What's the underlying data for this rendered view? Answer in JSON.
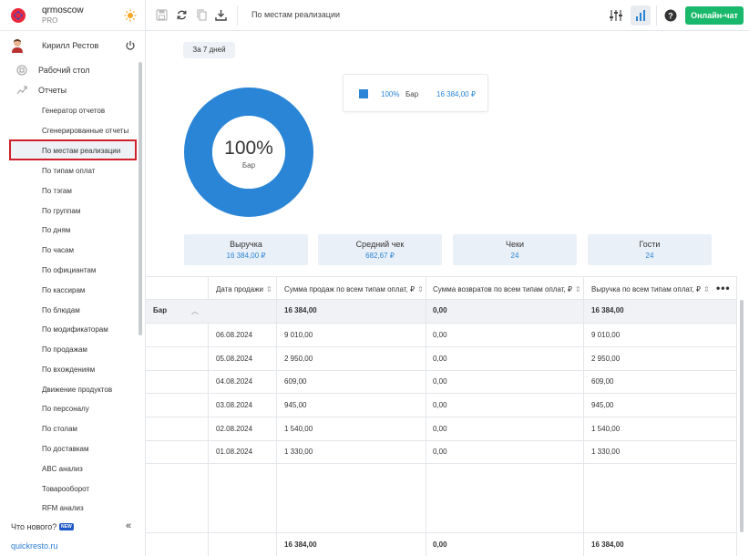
{
  "brand": {
    "name": "qrmoscow",
    "plan": "PRO"
  },
  "user": {
    "name": "Кирилл Рестов"
  },
  "nav": {
    "desktop": "Рабочий стол",
    "reports": "Отчеты",
    "items": [
      "Генератор отчетов",
      "Сгенерированные отчеты",
      "По местам реализации",
      "По типам оплат",
      "По тэгам",
      "По группам",
      "По дням",
      "По часам",
      "По официантам",
      "По кассирам",
      "По блюдам",
      "По модификаторам",
      "По продажам",
      "По вхождениям",
      "Движение продуктов",
      "По персоналу",
      "По столам",
      "По доставкам",
      "ABC анализ",
      "Товарооборот",
      "RFM анализ"
    ],
    "active_index": 2,
    "whats_new": "Что нового?",
    "new_badge": "NEW",
    "site_link": "quickresto.ru"
  },
  "toolbar": {
    "title": "По местам реализации",
    "chat_label": "Онлайн-чат"
  },
  "period": {
    "label": "За 7 дней"
  },
  "chart_data": {
    "type": "pie",
    "donut": true,
    "center_value": "100%",
    "center_label": "Бар",
    "slices": [
      {
        "label": "Бар",
        "percent": 100,
        "value": "16 384,00 ₽",
        "color": "#2a85d6"
      }
    ]
  },
  "stats": [
    {
      "title": "Выручка",
      "value": "16 384,00 ₽"
    },
    {
      "title": "Средний чек",
      "value": "682,67 ₽"
    },
    {
      "title": "Чеки",
      "value": "24"
    },
    {
      "title": "Гости",
      "value": "24"
    }
  ],
  "table": {
    "headers": [
      "Дата продажи",
      "Сумма продаж по всем типам оплат, ₽",
      "Сумма возвратов по всем типам оплат, ₽",
      "Выручка по всем типам оплат, ₽"
    ],
    "group": {
      "name": "Бар",
      "sales": "16 384,00",
      "returns": "0,00",
      "revenue": "16 384,00"
    },
    "rows": [
      {
        "date": "06.08.2024",
        "sales": "9 010,00",
        "returns": "0,00",
        "revenue": "9 010,00"
      },
      {
        "date": "05.08.2024",
        "sales": "2 950,00",
        "returns": "0,00",
        "revenue": "2 950,00"
      },
      {
        "date": "04.08.2024",
        "sales": "609,00",
        "returns": "0,00",
        "revenue": "609,00"
      },
      {
        "date": "03.08.2024",
        "sales": "945,00",
        "returns": "0,00",
        "revenue": "945,00"
      },
      {
        "date": "02.08.2024",
        "sales": "1 540,00",
        "returns": "0,00",
        "revenue": "1 540,00"
      },
      {
        "date": "01.08.2024",
        "sales": "1 330,00",
        "returns": "0,00",
        "revenue": "1 330,00"
      }
    ],
    "totals": {
      "sales": "16 384,00",
      "returns": "0,00",
      "revenue": "16 384,00"
    }
  }
}
